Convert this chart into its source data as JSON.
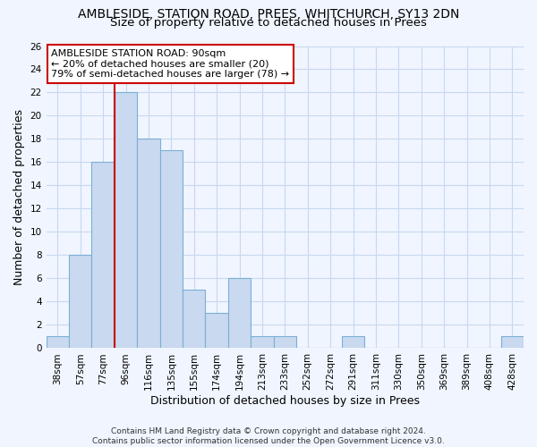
{
  "title": "AMBLESIDE, STATION ROAD, PREES, WHITCHURCH, SY13 2DN",
  "subtitle": "Size of property relative to detached houses in Prees",
  "xlabel": "Distribution of detached houses by size in Prees",
  "ylabel": "Number of detached properties",
  "bin_labels": [
    "38sqm",
    "57sqm",
    "77sqm",
    "96sqm",
    "116sqm",
    "135sqm",
    "155sqm",
    "174sqm",
    "194sqm",
    "213sqm",
    "233sqm",
    "252sqm",
    "272sqm",
    "291sqm",
    "311sqm",
    "330sqm",
    "350sqm",
    "369sqm",
    "389sqm",
    "408sqm",
    "428sqm"
  ],
  "bar_values": [
    1,
    8,
    16,
    22,
    18,
    17,
    5,
    3,
    6,
    1,
    1,
    0,
    0,
    1,
    0,
    0,
    0,
    0,
    0,
    0,
    1
  ],
  "bar_color": "#c9d9f0",
  "bar_edge_color": "#7bafd4",
  "property_line_x": 2.5,
  "property_line_color": "#cc0000",
  "annotation_text": "AMBLESIDE STATION ROAD: 90sqm\n← 20% of detached houses are smaller (20)\n79% of semi-detached houses are larger (78) →",
  "annotation_box_color": "white",
  "annotation_box_edge_color": "#cc0000",
  "ylim": [
    0,
    26
  ],
  "yticks": [
    0,
    2,
    4,
    6,
    8,
    10,
    12,
    14,
    16,
    18,
    20,
    22,
    24,
    26
  ],
  "footer_line1": "Contains HM Land Registry data © Crown copyright and database right 2024.",
  "footer_line2": "Contains public sector information licensed under the Open Government Licence v3.0.",
  "bg_color": "#f0f5ff",
  "grid_color": "#c8d8f0",
  "title_fontsize": 10,
  "subtitle_fontsize": 9.5,
  "axis_label_fontsize": 9,
  "tick_fontsize": 7.5,
  "annotation_fontsize": 8,
  "footer_fontsize": 6.5
}
